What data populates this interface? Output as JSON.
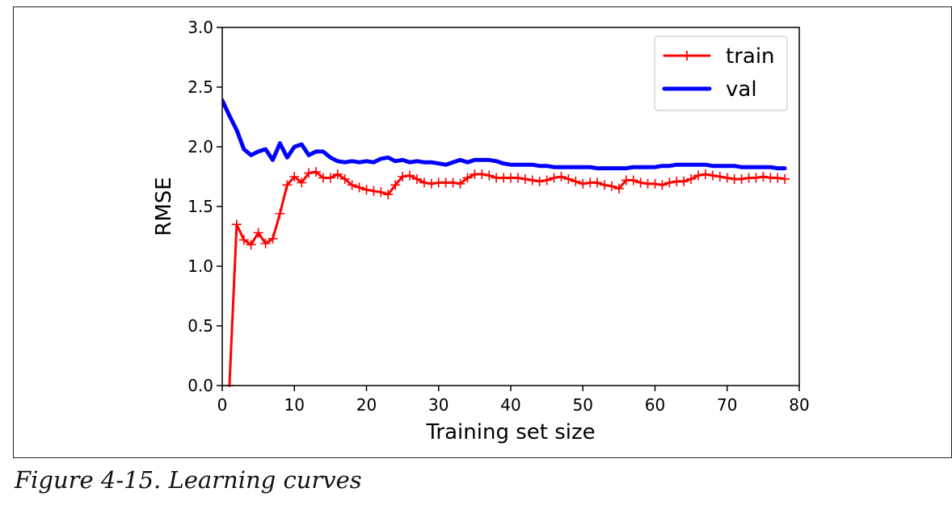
{
  "figure": {
    "caption": "Figure 4-15. Learning curves"
  },
  "chart_data": {
    "type": "line",
    "xlabel": "Training set size",
    "ylabel": "RMSE",
    "xlim": [
      0,
      80
    ],
    "ylim": [
      0.0,
      3.0
    ],
    "xticks": [
      "0",
      "10",
      "20",
      "30",
      "40",
      "50",
      "60",
      "70",
      "80"
    ],
    "yticks": [
      "0.0",
      "0.5",
      "1.0",
      "1.5",
      "2.0",
      "2.5",
      "3.0"
    ],
    "grid": false,
    "legend_position": "top-right",
    "series": [
      {
        "name": "train",
        "color": "#ff0000",
        "marker": "+",
        "x": [
          1,
          2,
          3,
          4,
          5,
          6,
          7,
          8,
          9,
          10,
          11,
          12,
          13,
          14,
          15,
          16,
          17,
          18,
          19,
          20,
          21,
          22,
          23,
          24,
          25,
          26,
          27,
          28,
          29,
          30,
          31,
          32,
          33,
          34,
          35,
          36,
          37,
          38,
          39,
          40,
          41,
          42,
          43,
          44,
          45,
          46,
          47,
          48,
          49,
          50,
          51,
          52,
          53,
          54,
          55,
          56,
          57,
          58,
          59,
          60,
          61,
          62,
          63,
          64,
          65,
          66,
          67,
          68,
          69,
          70,
          71,
          72,
          73,
          74,
          75,
          76,
          77,
          78
        ],
        "y": [
          0.0,
          1.35,
          1.22,
          1.18,
          1.28,
          1.19,
          1.23,
          1.44,
          1.68,
          1.75,
          1.7,
          1.78,
          1.79,
          1.74,
          1.74,
          1.77,
          1.73,
          1.68,
          1.66,
          1.64,
          1.63,
          1.62,
          1.6,
          1.68,
          1.75,
          1.76,
          1.73,
          1.7,
          1.69,
          1.7,
          1.7,
          1.7,
          1.69,
          1.74,
          1.77,
          1.77,
          1.76,
          1.74,
          1.74,
          1.74,
          1.74,
          1.73,
          1.72,
          1.71,
          1.72,
          1.74,
          1.75,
          1.73,
          1.71,
          1.69,
          1.7,
          1.7,
          1.68,
          1.67,
          1.65,
          1.72,
          1.72,
          1.7,
          1.69,
          1.69,
          1.68,
          1.7,
          1.71,
          1.71,
          1.73,
          1.76,
          1.77,
          1.76,
          1.75,
          1.74,
          1.73,
          1.73,
          1.74,
          1.74,
          1.75,
          1.74,
          1.74,
          1.73
        ]
      },
      {
        "name": "val",
        "color": "#0000ff",
        "x": [
          0,
          1,
          2,
          3,
          4,
          5,
          6,
          7,
          8,
          9,
          10,
          11,
          12,
          13,
          14,
          15,
          16,
          17,
          18,
          19,
          20,
          21,
          22,
          23,
          24,
          25,
          26,
          27,
          28,
          29,
          30,
          31,
          32,
          33,
          34,
          35,
          36,
          37,
          38,
          39,
          40,
          41,
          42,
          43,
          44,
          45,
          46,
          47,
          48,
          49,
          50,
          51,
          52,
          53,
          54,
          55,
          56,
          57,
          58,
          59,
          60,
          61,
          62,
          63,
          64,
          65,
          66,
          67,
          68,
          69,
          70,
          71,
          72,
          73,
          74,
          75,
          76,
          77,
          78
        ],
        "y": [
          2.39,
          2.26,
          2.14,
          1.98,
          1.93,
          1.96,
          1.98,
          1.89,
          2.03,
          1.91,
          2.0,
          2.02,
          1.93,
          1.96,
          1.96,
          1.91,
          1.88,
          1.87,
          1.88,
          1.87,
          1.88,
          1.87,
          1.9,
          1.91,
          1.88,
          1.89,
          1.87,
          1.88,
          1.87,
          1.87,
          1.86,
          1.85,
          1.87,
          1.89,
          1.87,
          1.89,
          1.89,
          1.89,
          1.88,
          1.86,
          1.85,
          1.85,
          1.85,
          1.85,
          1.84,
          1.84,
          1.83,
          1.83,
          1.83,
          1.83,
          1.83,
          1.83,
          1.82,
          1.82,
          1.82,
          1.82,
          1.82,
          1.83,
          1.83,
          1.83,
          1.83,
          1.84,
          1.84,
          1.85,
          1.85,
          1.85,
          1.85,
          1.85,
          1.84,
          1.84,
          1.84,
          1.84,
          1.83,
          1.83,
          1.83,
          1.83,
          1.83,
          1.82,
          1.82
        ]
      }
    ]
  }
}
